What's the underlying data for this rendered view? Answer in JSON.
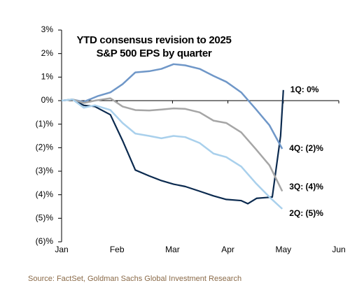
{
  "chart_data": {
    "type": "line",
    "title": "YTD consensus revision to 2025 S&P 500 EPS by quarter",
    "source": "Source: FactSet, Goldman Sachs Global Investment Research",
    "xlim": [
      0,
      5
    ],
    "xticks": [
      {
        "value": 0,
        "label": "Jan"
      },
      {
        "value": 1,
        "label": "Feb"
      },
      {
        "value": 2,
        "label": "Mar"
      },
      {
        "value": 3,
        "label": "Apr"
      },
      {
        "value": 4,
        "label": "May"
      },
      {
        "value": 5,
        "label": "Jun"
      }
    ],
    "ylim": [
      -6,
      3
    ],
    "yticks": [
      {
        "value": 3,
        "label": "3%"
      },
      {
        "value": 2,
        "label": "2%"
      },
      {
        "value": 1,
        "label": "1%"
      },
      {
        "value": 0,
        "label": "0%"
      },
      {
        "value": -1,
        "label": "(1)%"
      },
      {
        "value": -2,
        "label": "(2)%"
      },
      {
        "value": -3,
        "label": "(3)%"
      },
      {
        "value": -4,
        "label": "(4)%"
      },
      {
        "value": -5,
        "label": "(5)%"
      },
      {
        "value": -6,
        "label": "(6)%"
      }
    ],
    "series": [
      {
        "name": "1Q: 0%",
        "color": "#0b2a4f",
        "x": [
          0,
          0.2,
          0.4,
          0.6,
          0.88,
          1.1,
          1.33,
          1.58,
          1.8,
          2.02,
          2.23,
          2.49,
          2.74,
          2.97,
          3.24,
          3.36,
          3.52,
          3.8,
          3.95,
          4.0
        ],
        "values": [
          0,
          0.05,
          -0.2,
          -0.25,
          -0.6,
          -1.7,
          -2.95,
          -3.2,
          -3.4,
          -3.55,
          -3.65,
          -3.85,
          -4.05,
          -4.2,
          -4.25,
          -4.38,
          -4.15,
          -4.1,
          -1.5,
          0.45
        ]
      },
      {
        "name": "4Q: (2)%",
        "color": "#6f97c8",
        "x": [
          0,
          0.19,
          0.4,
          0.66,
          0.88,
          1.1,
          1.33,
          1.58,
          1.8,
          2.02,
          2.23,
          2.49,
          2.74,
          2.97,
          3.24,
          3.5,
          3.75,
          3.98
        ],
        "values": [
          0,
          0.05,
          -0.05,
          0.2,
          0.35,
          0.7,
          1.2,
          1.25,
          1.35,
          1.55,
          1.5,
          1.35,
          1.05,
          0.8,
          0.35,
          -0.35,
          -1.05,
          -2.05
        ]
      },
      {
        "name": "3Q: (4)%",
        "color": "#a6a6a6",
        "x": [
          0,
          0.2,
          0.4,
          0.6,
          0.88,
          1.1,
          1.33,
          1.58,
          1.8,
          2.02,
          2.23,
          2.49,
          2.74,
          2.97,
          3.24,
          3.5,
          3.75,
          3.98
        ],
        "values": [
          0,
          0.05,
          -0.1,
          0,
          0.1,
          -0.25,
          -0.4,
          -0.42,
          -0.38,
          -0.33,
          -0.35,
          -0.5,
          -0.85,
          -0.95,
          -1.35,
          -2.05,
          -2.75,
          -3.85
        ]
      },
      {
        "name": "2Q: (5)%",
        "color": "#a9d0ec",
        "x": [
          0,
          0.2,
          0.4,
          0.6,
          0.88,
          1.1,
          1.33,
          1.58,
          1.8,
          2.02,
          2.23,
          2.49,
          2.74,
          2.97,
          3.24,
          3.5,
          3.75,
          3.98
        ],
        "values": [
          0,
          0.05,
          -0.3,
          -0.2,
          -0.4,
          -0.95,
          -1.4,
          -1.5,
          -1.6,
          -1.5,
          -1.55,
          -1.8,
          -2.25,
          -2.4,
          -2.8,
          -3.5,
          -4.1,
          -4.6
        ]
      }
    ]
  }
}
